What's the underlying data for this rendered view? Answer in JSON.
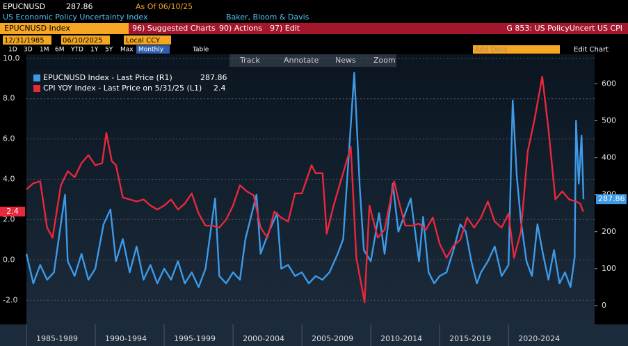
{
  "header": {
    "ticker": "EPUCNUSD",
    "price": "287.86",
    "as_of": "As Of 06/10/25",
    "description": "US Economic Policy Uncertainty Index",
    "source": "Baker, Bloom & Davis"
  },
  "toolbar": {
    "security": "EPUCNUSD Index",
    "menus": [
      "96) Suggested Charts",
      "90) Actions",
      "97) Edit"
    ],
    "chart_name": "G 853: US PolicyUncert US CPI"
  },
  "controls": {
    "start": "12/31/1985",
    "end": "06/10/2025",
    "currency": "Local CCY",
    "periods": [
      "1D",
      "3D",
      "1M",
      "6M",
      "YTD",
      "1Y",
      "5Y",
      "Max"
    ],
    "frequency": "Monthly",
    "table": "Table",
    "add_data": "Add Data",
    "edit_chart": "Edit Chart"
  },
  "tools": [
    "Track",
    "Annotate",
    "News",
    "Zoom"
  ],
  "chart_data": {
    "type": "line",
    "categories": [
      "1985-1989",
      "1990-1994",
      "1995-1999",
      "2000-2004",
      "2005-2009",
      "2010-2014",
      "2015-2019",
      "2020-2024"
    ],
    "xlim": [
      1985,
      2026.25
    ],
    "ylim": [
      -3.2,
      10.2
    ],
    "yticks": [
      {
        "value": -2,
        "label": "-2.0"
      },
      {
        "value": 0,
        "label": "0.0"
      },
      {
        "value": 2,
        "label": "2.0"
      },
      {
        "value": 4,
        "label": "4.0"
      },
      {
        "value": 6,
        "label": "6.0"
      },
      {
        "value": 8,
        "label": "8.0"
      },
      {
        "value": 10,
        "label": "10.0"
      }
    ],
    "y2lim": [
      -51,
      680
    ],
    "y2ticks": [
      0,
      100,
      200,
      300,
      400,
      500,
      600
    ],
    "grid": true,
    "legend": "top-left",
    "series": [
      {
        "name": "EPUCNUSD Index - Last Price (R1)",
        "color": "#3d9ae8",
        "axis": "y2",
        "x": [
          1985,
          1985.5,
          1986,
          1986.5,
          1987,
          1987.8,
          1988,
          1988.5,
          1989,
          1989.5,
          1990,
          1990.6,
          1991.1,
          1991.5,
          1992,
          1992.5,
          1993,
          1993.5,
          1994,
          1994.5,
          1995,
          1995.5,
          1996,
          1996.5,
          1997,
          1997.5,
          1998,
          1998.7,
          1999,
          1999.5,
          2000,
          2000.5,
          2000.9,
          2001.7,
          2002,
          2002.6,
          2003.2,
          2003.5,
          2004,
          2004.5,
          2005,
          2005.5,
          2006,
          2006.5,
          2007,
          2007.6,
          2008,
          2008.8,
          2009.2,
          2009.5,
          2010,
          2010.6,
          2011,
          2011.6,
          2012,
          2012.9,
          2013.5,
          2013.8,
          2014.2,
          2014.6,
          2015,
          2015.5,
          2016,
          2016.5,
          2016.9,
          2017.3,
          2017.7,
          2018,
          2018.5,
          2019,
          2019.5,
          2020,
          2020.3,
          2020.6,
          2020.9,
          2021.3,
          2021.7,
          2022.1,
          2022.5,
          2022.9,
          2023.3,
          2023.7,
          2024.1,
          2024.5,
          2024.8,
          2024.9,
          2025.1,
          2025.3,
          2025.44
        ],
        "values": [
          140,
          60,
          110,
          70,
          90,
          300,
          120,
          80,
          140,
          70,
          100,
          220,
          260,
          120,
          180,
          90,
          160,
          70,
          110,
          60,
          100,
          70,
          120,
          60,
          90,
          50,
          100,
          290,
          80,
          60,
          90,
          70,
          180,
          300,
          140,
          200,
          250,
          100,
          110,
          80,
          90,
          60,
          80,
          70,
          90,
          140,
          180,
          630,
          320,
          150,
          120,
          250,
          140,
          330,
          200,
          290,
          120,
          240,
          90,
          60,
          80,
          90,
          150,
          220,
          200,
          120,
          60,
          90,
          120,
          160,
          80,
          110,
          555,
          350,
          230,
          120,
          80,
          220,
          140,
          70,
          150,
          60,
          90,
          50,
          130,
          500,
          330,
          460,
          287.86
        ]
      },
      {
        "name": "CPI YOY Index - Last Price on 5/31/25 (L1)",
        "color": "#e8283c",
        "axis": "y",
        "x": [
          1985,
          1985.5,
          1986,
          1986.5,
          1986.9,
          1987.5,
          1988,
          1988.5,
          1989,
          1989.5,
          1990,
          1990.5,
          1990.8,
          1991.2,
          1991.5,
          1992,
          1992.5,
          1993,
          1993.5,
          1994,
          1994.5,
          1995,
          1995.5,
          1996,
          1996.5,
          1997,
          1997.5,
          1998,
          1998.5,
          1999,
          1999.5,
          2000,
          2000.5,
          2001,
          2001.5,
          2002,
          2002.5,
          2003,
          2003.5,
          2004,
          2004.5,
          2005,
          2005.7,
          2006,
          2006.5,
          2006.8,
          2007.3,
          2007.9,
          2008.55,
          2008.95,
          2009.55,
          2009.9,
          2010.5,
          2011,
          2011.7,
          2012,
          2012.5,
          2013,
          2013.5,
          2014,
          2014.5,
          2015,
          2015.5,
          2016,
          2016.5,
          2017,
          2017.5,
          2018,
          2018.5,
          2019,
          2019.5,
          2020,
          2020.4,
          2020.9,
          2021.4,
          2021.9,
          2022.45,
          2022.9,
          2023.4,
          2023.9,
          2024.4,
          2024.9,
          2025.2,
          2025.42
        ],
        "values": [
          3.5,
          3.8,
          3.9,
          1.6,
          1.1,
          3.7,
          4.4,
          4.1,
          4.8,
          5.2,
          4.7,
          4.8,
          6.3,
          4.9,
          4.7,
          3.1,
          3.0,
          2.9,
          3.0,
          2.7,
          2.5,
          2.7,
          3.0,
          2.5,
          2.8,
          3.3,
          2.3,
          1.7,
          1.7,
          1.6,
          2.0,
          2.7,
          3.7,
          3.4,
          3.2,
          1.6,
          1.1,
          2.4,
          2.1,
          1.9,
          3.3,
          3.3,
          4.7,
          4.3,
          4.3,
          1.3,
          2.7,
          4.1,
          5.6,
          0.1,
          -2.1,
          2.7,
          1.1,
          1.5,
          3.9,
          3.0,
          1.7,
          1.7,
          1.8,
          1.5,
          2.1,
          0.8,
          0.1,
          0.7,
          1.0,
          2.1,
          1.6,
          2.1,
          2.9,
          1.9,
          1.6,
          2.3,
          0.1,
          1.4,
          5.4,
          7.0,
          9.1,
          6.5,
          3.0,
          3.4,
          3.0,
          2.9,
          2.8,
          2.4
        ]
      }
    ]
  }
}
